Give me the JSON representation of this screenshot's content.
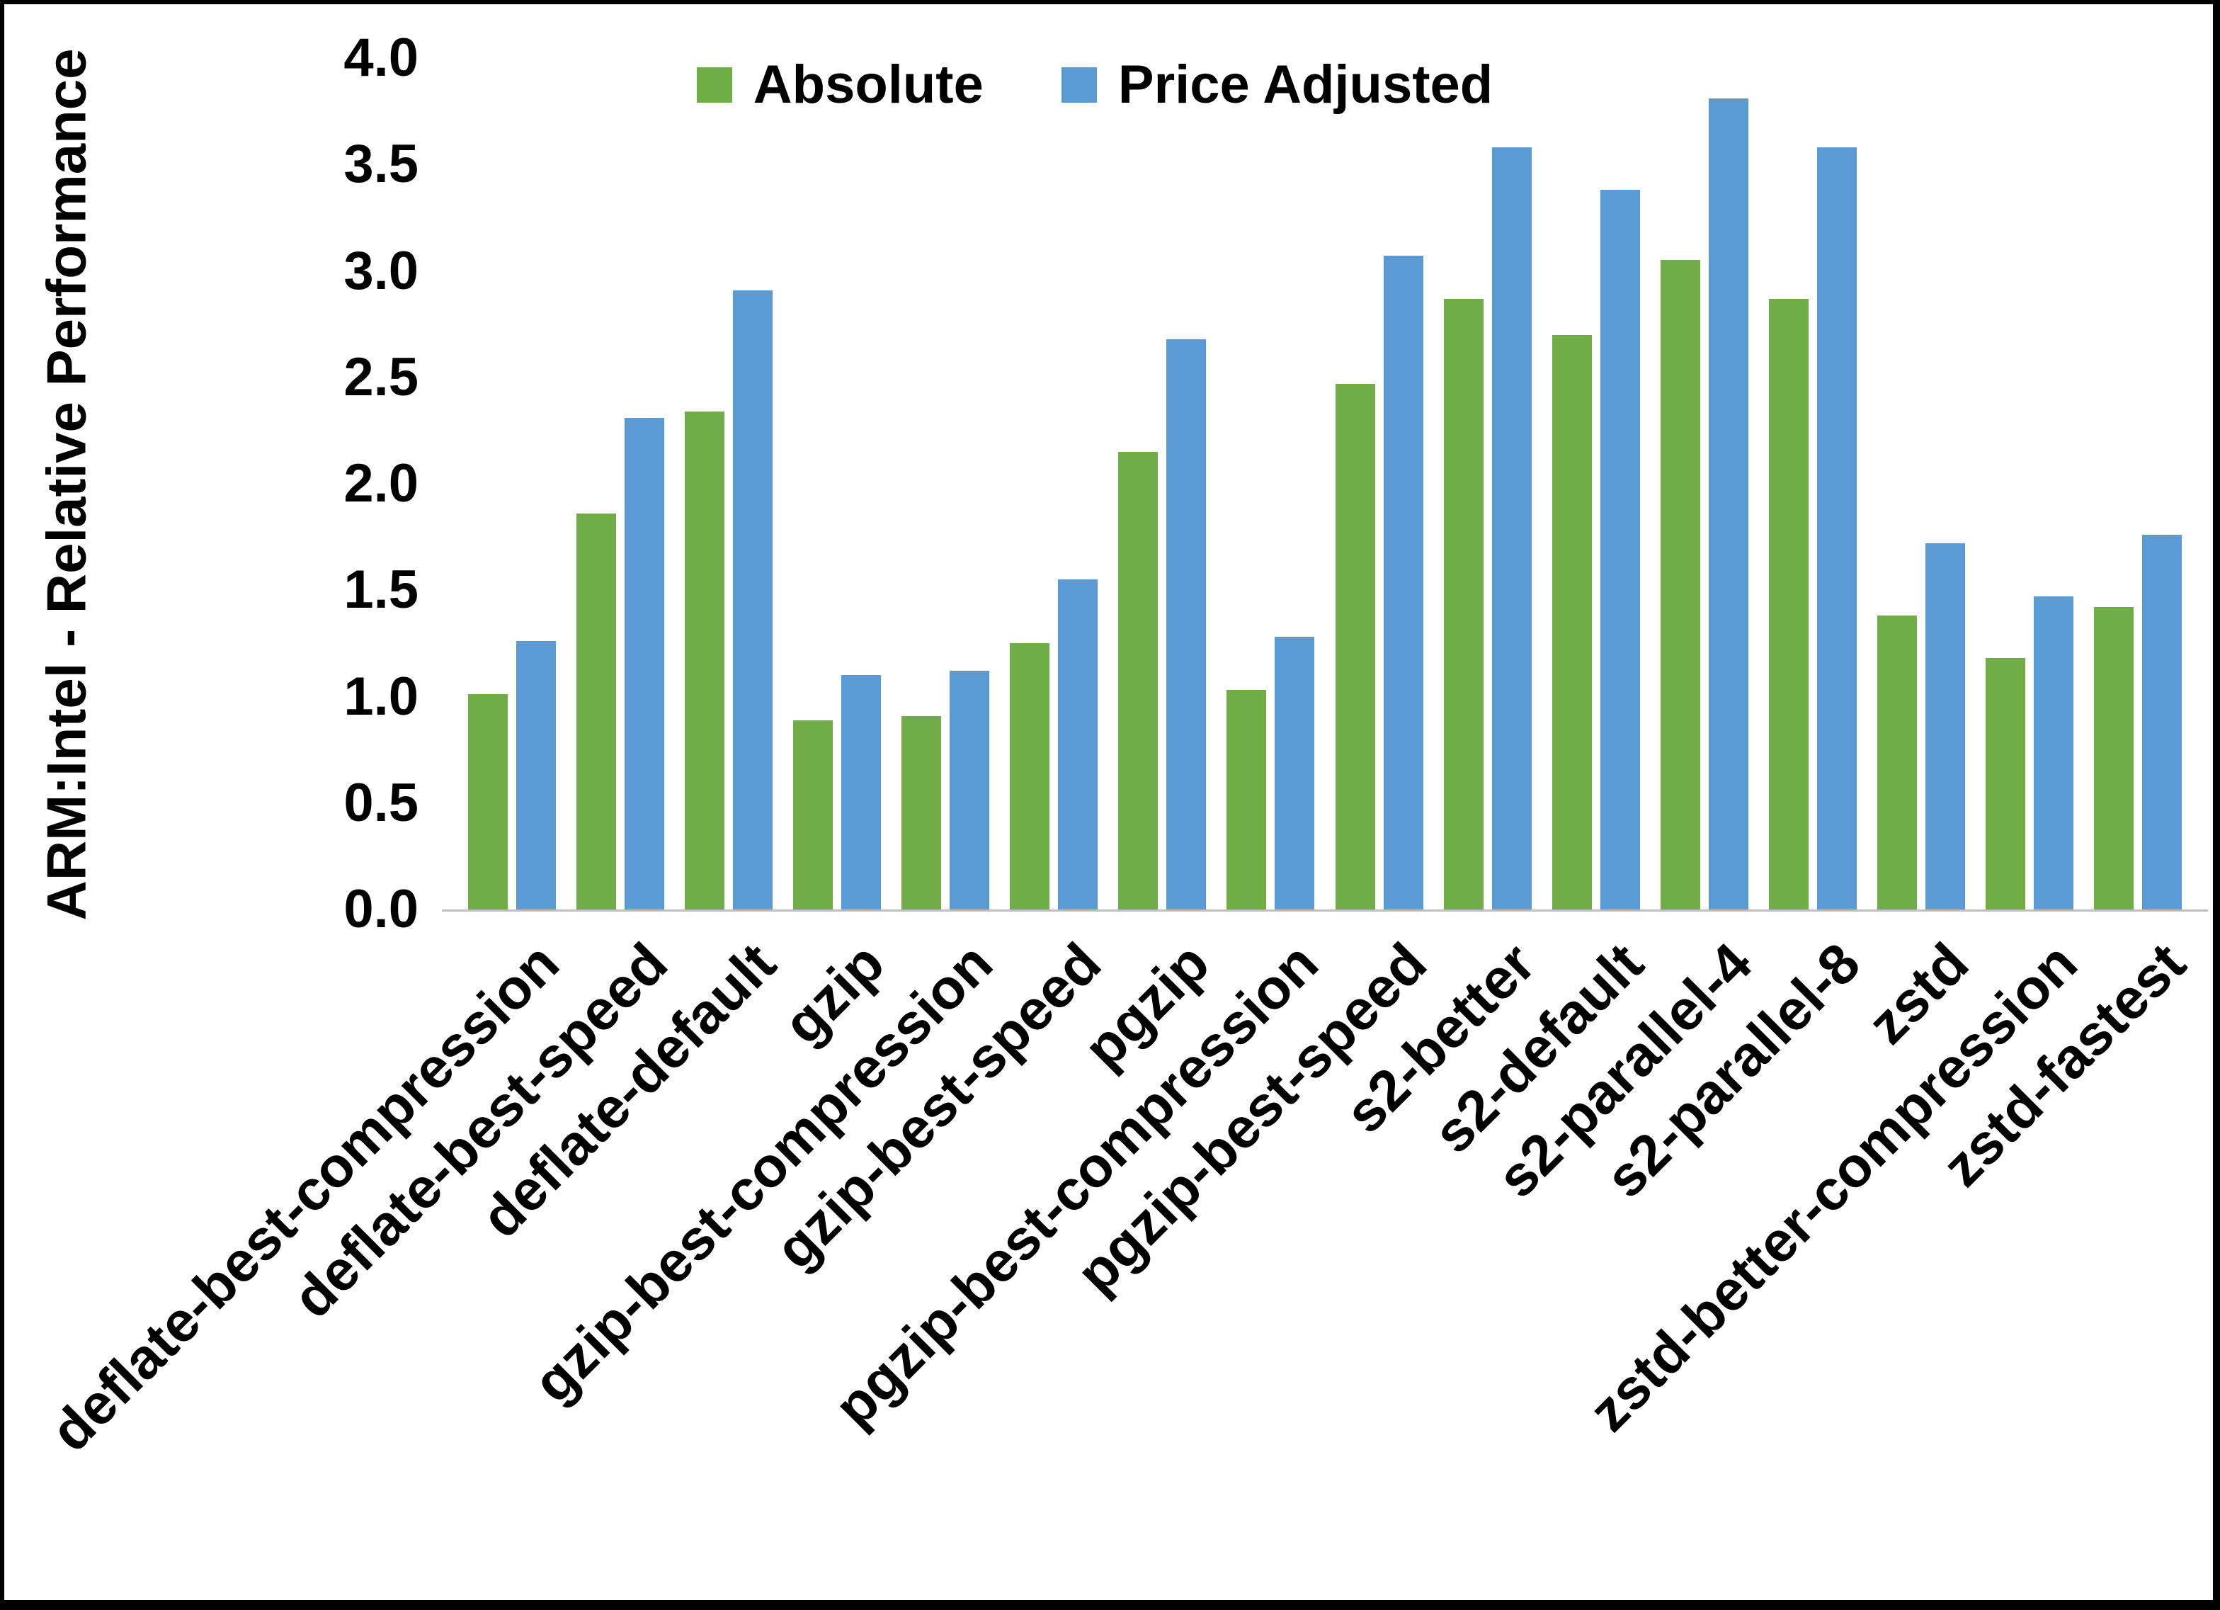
{
  "chart_data": {
    "type": "bar",
    "title": "",
    "xlabel": "",
    "ylabel": "ARM:Intel - Relative Performance",
    "ylim": [
      0.0,
      4.0
    ],
    "ytick_step": 0.5,
    "ytick_format_decimals": 1,
    "grid": false,
    "legend_position": "top-center",
    "categories": [
      "deflate-best-compression",
      "deflate-best-speed",
      "deflate-default",
      "gzip",
      "gzip-best-compression",
      "gzip-best-speed",
      "pgzip",
      "pgzip-best-compression",
      "pgzip-best-speed",
      "s2-better",
      "s2-default",
      "s2-parallel-4",
      "s2-parallel-8",
      "zstd",
      "zstd-better-compression",
      "zstd-fastest"
    ],
    "series": [
      {
        "name": "Absolute",
        "color": "#70AD47",
        "values": [
          1.01,
          1.86,
          2.34,
          0.89,
          0.91,
          1.25,
          2.15,
          1.03,
          2.47,
          2.87,
          2.7,
          3.05,
          2.87,
          1.38,
          1.18,
          1.42
        ]
      },
      {
        "name": "Price Adjusted",
        "color": "#5B9BD5",
        "values": [
          1.26,
          2.31,
          2.91,
          1.1,
          1.12,
          1.55,
          2.68,
          1.28,
          3.07,
          3.58,
          3.38,
          3.81,
          3.58,
          1.72,
          1.47,
          1.76
        ]
      }
    ],
    "colors": {
      "axis_line": "#bfbfbf",
      "text": "#000000",
      "background": "#ffffff"
    }
  }
}
